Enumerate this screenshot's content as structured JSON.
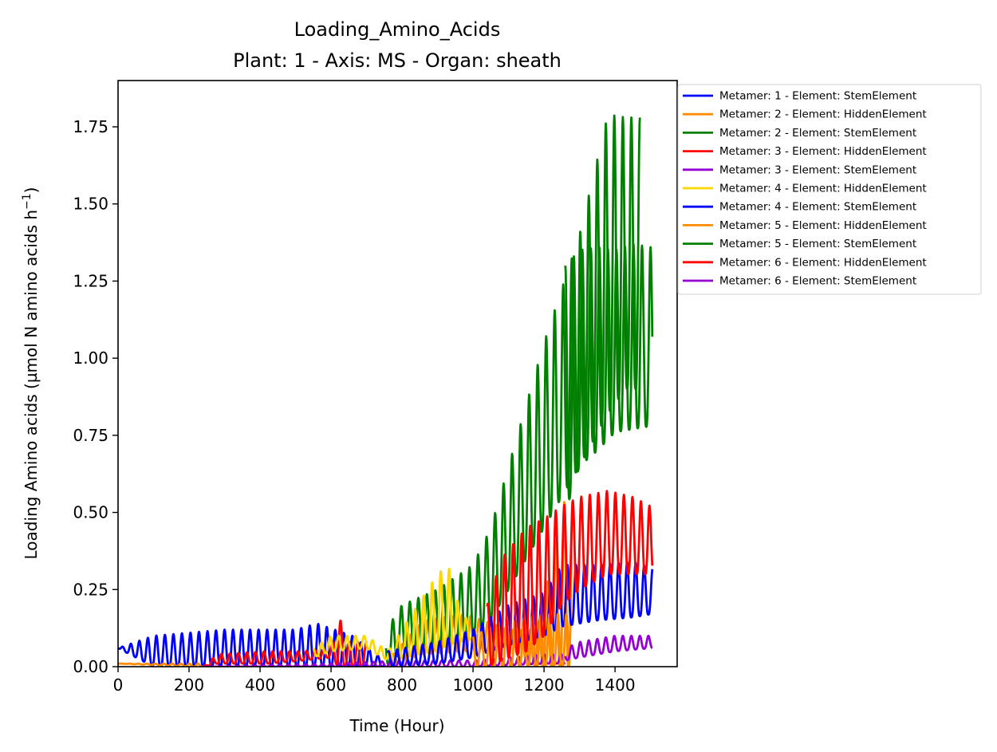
{
  "chart_data": {
    "type": "line",
    "title": "Loading_Amino_Acids",
    "subtitle": "Plant: 1 - Axis: MS - Organ: sheath",
    "xlabel": "Time (Hour)",
    "ylabel": "Loading Amino acids (µmol N amino acids h",
    "ylabel_superscript": "−1",
    "ylabel_suffix": ")",
    "xlim": [
      0,
      1575
    ],
    "ylim": [
      0,
      1.9
    ],
    "xticks": [
      0,
      200,
      400,
      600,
      800,
      1000,
      1200,
      1400
    ],
    "xtick_labels": [
      "0",
      "200",
      "400",
      "600",
      "800",
      "1000",
      "1200",
      "1400"
    ],
    "yticks": [
      0,
      0.25,
      0.5,
      0.75,
      1.0,
      1.25,
      1.5,
      1.75
    ],
    "ytick_labels": [
      "0.00",
      "0.25",
      "0.50",
      "0.75",
      "1.00",
      "1.25",
      "1.50",
      "1.75"
    ],
    "grid": false,
    "legend_position": "outside-right-top",
    "x_step_hours": 1,
    "series": [
      {
        "name": "Metamer: 1 - Element: StemElement",
        "color": "#0000ff",
        "envelope": [
          [
            0,
            0.06,
            0.06
          ],
          [
            100,
            0.0,
            0.1
          ],
          [
            300,
            0.0,
            0.12
          ],
          [
            500,
            0.0,
            0.12
          ],
          [
            560,
            0.0,
            0.14
          ],
          [
            660,
            0.0,
            0.1
          ],
          [
            740,
            0.0,
            0.03
          ],
          [
            750,
            null,
            null
          ]
        ]
      },
      {
        "name": "Metamer: 2 - Element: HiddenElement",
        "color": "#ff8c00",
        "envelope": [
          [
            0,
            0.01,
            0.01
          ],
          [
            220,
            0.0,
            0.01
          ],
          [
            240,
            null,
            null
          ],
          [
            760,
            0.0,
            0.02
          ],
          [
            860,
            0.04,
            0.15
          ],
          [
            980,
            0.05,
            0.17
          ],
          [
            1100,
            0.06,
            0.12
          ],
          [
            1180,
            0.0,
            0.12
          ],
          [
            1260,
            0.0,
            0.55
          ],
          [
            1280,
            null,
            null
          ]
        ]
      },
      {
        "name": "Metamer: 2 - Element: StemElement",
        "color": "#008000",
        "envelope": [
          [
            755,
            0.0,
            0.12
          ],
          [
            800,
            0.05,
            0.2
          ],
          [
            900,
            0.07,
            0.25
          ],
          [
            1000,
            0.1,
            0.33
          ],
          [
            1050,
            0.15,
            0.45
          ],
          [
            1100,
            0.25,
            0.65
          ],
          [
            1200,
            0.45,
            1.05
          ],
          [
            1300,
            0.65,
            1.4
          ],
          [
            1380,
            0.82,
            1.79
          ],
          [
            1430,
            0.9,
            1.78
          ],
          [
            1460,
            0.9,
            1.78
          ],
          [
            1470,
            null,
            null
          ]
        ]
      },
      {
        "name": "Metamer: 3 - Element: HiddenElement",
        "color": "#ff0000",
        "envelope": [
          [
            240,
            0.0,
            0.0
          ],
          [
            280,
            0.01,
            0.04
          ],
          [
            420,
            0.01,
            0.05
          ],
          [
            520,
            0.02,
            0.05
          ],
          [
            600,
            0.03,
            0.06
          ],
          [
            620,
            0.0,
            0.17
          ],
          [
            650,
            0.0,
            0.08
          ],
          [
            700,
            null,
            null
          ]
        ]
      },
      {
        "name": "Metamer: 3 - Element: StemElement",
        "color": "#9400d3",
        "envelope": [
          [
            240,
            0.0,
            0.0
          ],
          [
            620,
            0.0,
            0.01
          ],
          [
            800,
            0.0,
            0.02
          ],
          [
            1000,
            0.0,
            0.02
          ],
          [
            1200,
            0.01,
            0.04
          ],
          [
            1260,
            null,
            null
          ]
        ]
      },
      {
        "name": "Metamer: 4 - Element: HiddenElement",
        "color": "#ffd700",
        "envelope": [
          [
            550,
            0.03,
            0.06
          ],
          [
            600,
            0.05,
            0.1
          ],
          [
            700,
            0.06,
            0.1
          ],
          [
            760,
            0.02,
            0.05
          ],
          [
            900,
            0.05,
            0.3
          ],
          [
            930,
            0.07,
            0.33
          ],
          [
            960,
            0.08,
            0.2
          ],
          [
            1000,
            0.09,
            0.12
          ],
          [
            1010,
            null,
            null
          ]
        ]
      },
      {
        "name": "Metamer: 4 - Element: StemElement",
        "color": "#0000ff",
        "envelope": [
          [
            760,
            0.0,
            0.05
          ],
          [
            900,
            0.01,
            0.08
          ],
          [
            1000,
            0.03,
            0.12
          ],
          [
            1100,
            0.07,
            0.2
          ],
          [
            1200,
            0.1,
            0.24
          ],
          [
            1250,
            0.13,
            0.33
          ],
          [
            1350,
            0.15,
            0.33
          ],
          [
            1450,
            0.16,
            0.34
          ],
          [
            1500,
            0.17,
            0.32
          ],
          [
            1505,
            null,
            null
          ]
        ]
      },
      {
        "name": "Metamer: 5 - Element: HiddenElement",
        "color": "#ff8c00",
        "envelope": [
          [
            1000,
            0.0,
            0.1
          ],
          [
            1100,
            0.0,
            0.15
          ],
          [
            1200,
            0.0,
            0.17
          ],
          [
            1270,
            null,
            null
          ]
        ]
      },
      {
        "name": "Metamer: 5 - Element: StemElement",
        "color": "#008000",
        "envelope": [
          [
            1260,
            0.5,
            1.3
          ],
          [
            1300,
            0.65,
            1.35
          ],
          [
            1350,
            0.7,
            1.36
          ],
          [
            1400,
            0.76,
            1.35
          ],
          [
            1450,
            0.77,
            1.37
          ],
          [
            1500,
            0.78,
            1.36
          ],
          [
            1505,
            null,
            null
          ]
        ]
      },
      {
        "name": "Metamer: 6 - Element: HiddenElement",
        "color": "#ff0000",
        "envelope": [
          [
            1040,
            0.0,
            0.2
          ],
          [
            1080,
            0.02,
            0.35
          ],
          [
            1150,
            0.05,
            0.45
          ],
          [
            1200,
            0.1,
            0.48
          ],
          [
            1250,
            0.2,
            0.52
          ],
          [
            1300,
            0.25,
            0.55
          ],
          [
            1380,
            0.3,
            0.57
          ],
          [
            1450,
            0.3,
            0.55
          ],
          [
            1500,
            0.3,
            0.52
          ],
          [
            1505,
            null,
            null
          ]
        ]
      },
      {
        "name": "Metamer: 6 - Element: StemElement",
        "color": "#9400d3",
        "envelope": [
          [
            1260,
            0.02,
            0.06
          ],
          [
            1300,
            0.03,
            0.08
          ],
          [
            1400,
            0.05,
            0.1
          ],
          [
            1500,
            0.06,
            0.1
          ],
          [
            1505,
            null,
            null
          ]
        ]
      }
    ]
  }
}
